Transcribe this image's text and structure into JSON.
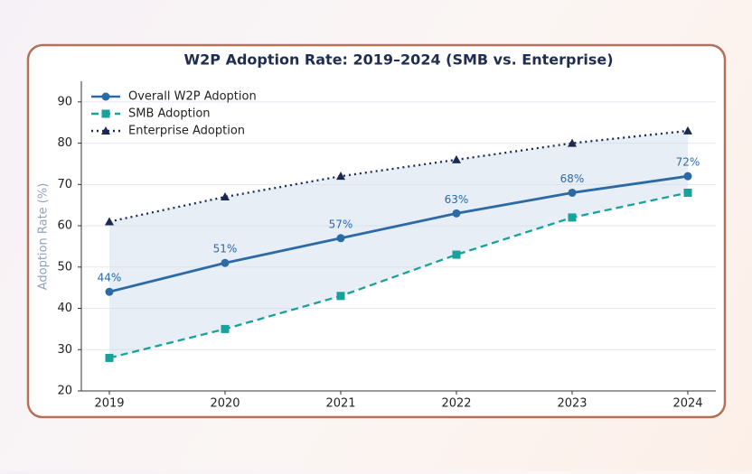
{
  "chart_data": {
    "type": "line",
    "title": "W2P Adoption Rate: 2019–2024 (SMB vs. Enterprise)",
    "y_label": "Adoption Rate (%)",
    "categories": [
      "2019",
      "2020",
      "2021",
      "2022",
      "2023",
      "2024"
    ],
    "series": [
      {
        "name": "Overall W2P Adoption",
        "color": "#2c6aa6",
        "marker": "circle",
        "dash": "solid",
        "values": [
          44,
          51,
          57,
          63,
          68,
          72
        ],
        "value_labels": [
          "44%",
          "51%",
          "57%",
          "63%",
          "68%",
          "72%"
        ]
      },
      {
        "name": "SMB Adoption",
        "color": "#17a29b",
        "marker": "square",
        "dash": "dashed",
        "values": [
          28,
          35,
          43,
          53,
          62,
          68
        ]
      },
      {
        "name": "Enterprise Adoption",
        "color": "#1a2b4f",
        "marker": "triangle",
        "dash": "dotted",
        "values": [
          61,
          67,
          72,
          76,
          80,
          83
        ]
      }
    ],
    "band_color": "#c9d9ec",
    "ylim": [
      20,
      95
    ],
    "yticks": [
      20,
      30,
      40,
      50,
      60,
      70,
      80,
      90
    ],
    "grid": true,
    "legend": "upper left"
  }
}
